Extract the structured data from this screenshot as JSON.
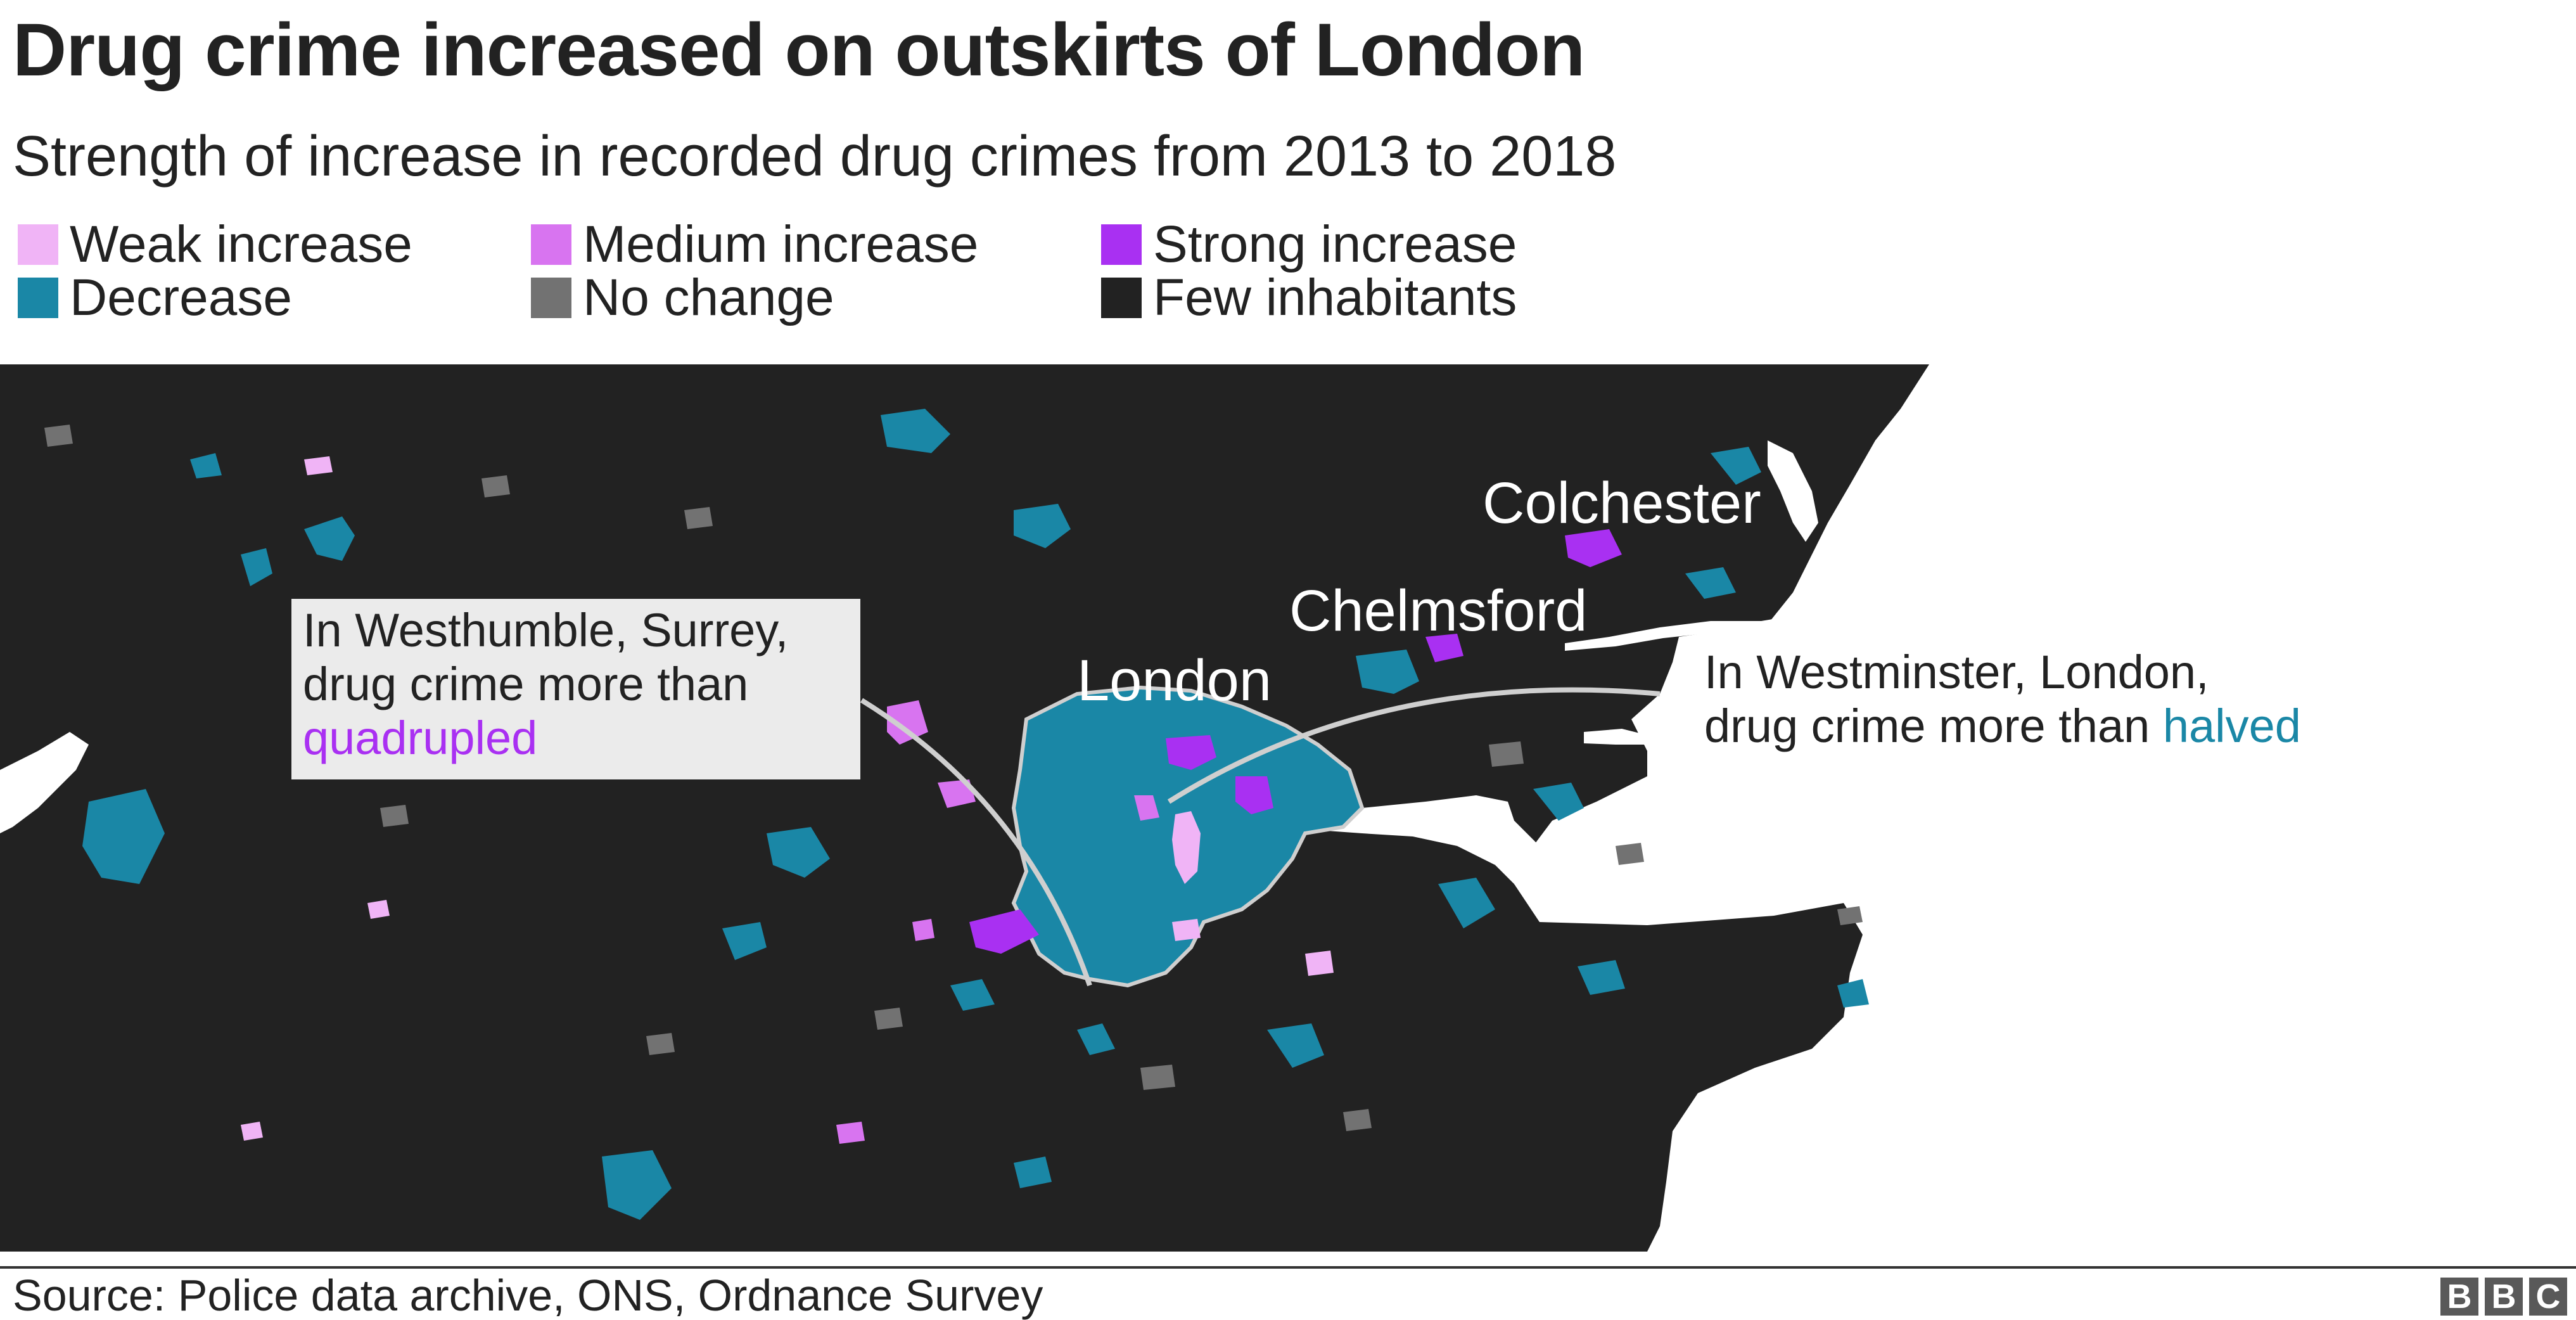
{
  "title": "Drug crime increased on outskirts of London",
  "subtitle": "Strength of increase in recorded drug crimes from 2013 to 2018",
  "colors": {
    "weak_increase": "#f0b4f6",
    "medium_increase": "#d874f0",
    "strong_increase": "#a930f2",
    "decrease": "#1a87a6",
    "no_change": "#727272",
    "few_inhabitants": "#222222",
    "water": "#ffffff",
    "boundary": "#cfcfcf"
  },
  "legend": [
    {
      "label": "Weak increase",
      "color": "#f0b4f6"
    },
    {
      "label": "Medium increase",
      "color": "#d874f0"
    },
    {
      "label": "Strong increase",
      "color": "#a930f2"
    },
    {
      "label": "Decrease",
      "color": "#1a87a6"
    },
    {
      "label": "No change",
      "color": "#727272"
    },
    {
      "label": "Few inhabitants",
      "color": "#222222"
    }
  ],
  "map": {
    "places": [
      "Colchester",
      "Chelmsford",
      "London"
    ],
    "annotation_left": {
      "line1": "In Westhumble, Surrey,",
      "line2": "drug crime more than",
      "highlight": "quadrupled",
      "highlight_color": "#a930f2"
    },
    "annotation_right": {
      "line1": "In Westminster, London,",
      "line2": "drug crime more than",
      "highlight": "halved",
      "highlight_color": "#1a87a6"
    }
  },
  "source": "Source: Police data archive, ONS, Ordnance Survey",
  "logo": [
    "B",
    "B",
    "C"
  ]
}
